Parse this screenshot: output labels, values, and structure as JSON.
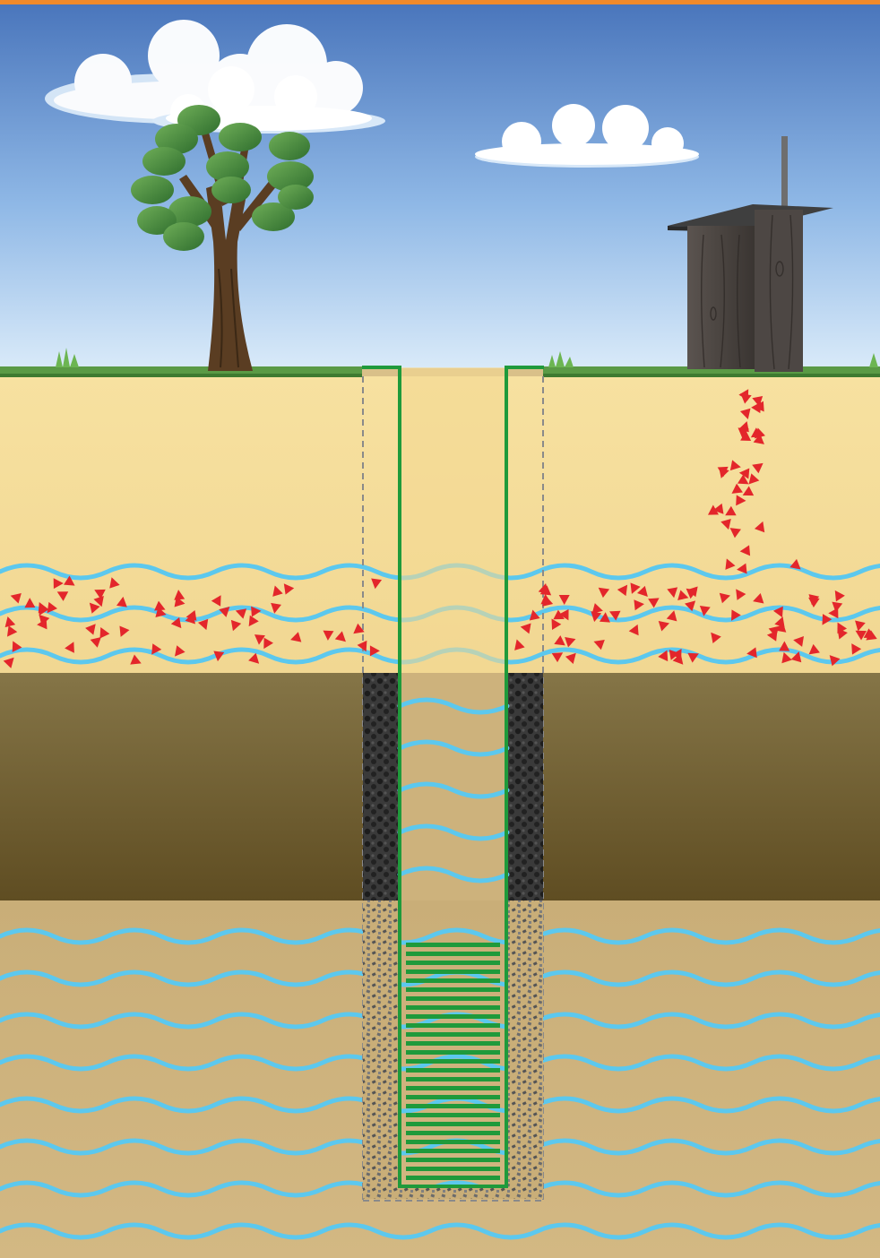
{
  "diagram": {
    "title": "",
    "labels": []
  },
  "colors": {
    "top_bar": "#f08a2c",
    "sky_top": "#4f7cc0",
    "sky_bottom": "#cfe3f7",
    "grass": "#4f8a3a",
    "sand_upper": "#f5dc96",
    "clay_layer": "#7b6a3c",
    "aquifer": "#c7ad78",
    "water_line": "#5cc8ee",
    "contaminant": "#e3262b",
    "casing": "#1f9a3b",
    "seal": "#2d2d2d",
    "gravel": "#6f6f6f"
  },
  "icons": {
    "tree": "tree-icon",
    "outhouse": "outhouse-icon",
    "cloud": "cloud-icon"
  }
}
